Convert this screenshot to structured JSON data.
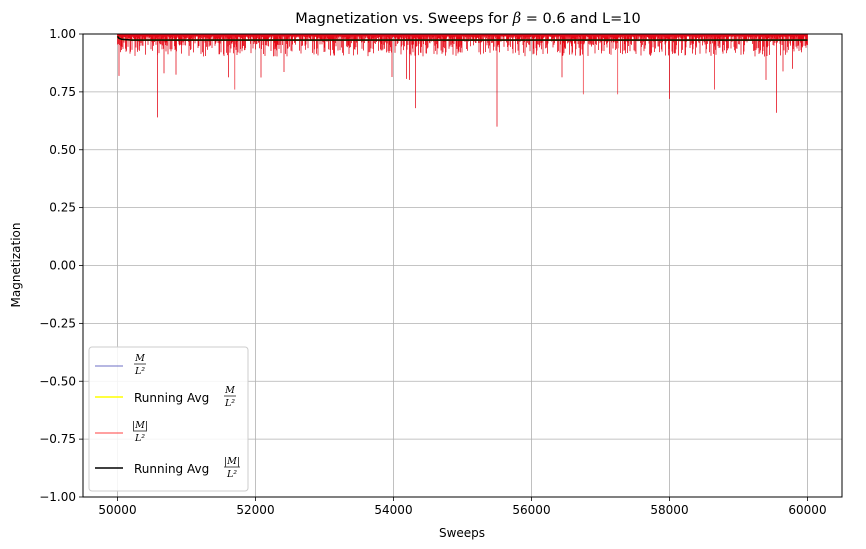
{
  "chart_data": {
    "type": "line",
    "title": "Magnetization vs. Sweeps for ",
    "title_beta_symbol": "β",
    "title_beta_eq": " = 0.6 and L=10",
    "xlabel": "Sweeps",
    "ylabel": "Magnetization",
    "xlim": [
      49500,
      60500
    ],
    "ylim": [
      -1.0,
      1.0
    ],
    "xticks": [
      50000,
      52000,
      54000,
      56000,
      58000,
      60000
    ],
    "xtick_labels": [
      "50000",
      "52000",
      "54000",
      "56000",
      "58000",
      "60000"
    ],
    "yticks": [
      1.0,
      0.75,
      0.5,
      0.25,
      0.0,
      -0.25,
      -0.5,
      -0.75,
      -1.0
    ],
    "ytick_labels": [
      "1.00",
      "0.75",
      "0.50",
      "0.25",
      "0.00",
      "−0.25",
      "−0.50",
      "−0.75",
      "−1.00"
    ],
    "grid": true,
    "legend_position": "lower-left",
    "series": [
      {
        "key": "m",
        "legend_math_num": "M",
        "legend_math_den": "L²",
        "color": "#3b3fb0",
        "style": "thin-line",
        "x_range": [
          50000,
          60000
        ],
        "typical_range": [
          0.9,
          1.0
        ],
        "dips": [
          {
            "x": 50580,
            "y": 0.64
          },
          {
            "x": 51700,
            "y": 0.76
          },
          {
            "x": 54320,
            "y": 0.68
          },
          {
            "x": 55500,
            "y": 0.6
          },
          {
            "x": 56750,
            "y": 0.74
          },
          {
            "x": 57250,
            "y": 0.74
          },
          {
            "x": 58000,
            "y": 0.72
          },
          {
            "x": 58650,
            "y": 0.76
          },
          {
            "x": 59550,
            "y": 0.66
          }
        ]
      },
      {
        "key": "m_avg",
        "legend_prefix": "Running Avg ",
        "legend_math_num": "M",
        "legend_math_den": "L²",
        "color": "#ffff00",
        "style": "line",
        "x": [
          50000,
          50020,
          50060,
          50200,
          60000
        ],
        "y": [
          0.99,
          0.982,
          0.977,
          0.974,
          0.974
        ]
      },
      {
        "key": "abs_m",
        "legend_math_num": "|M|",
        "legend_math_den": "L²",
        "color": "#ff0000",
        "style": "thin-line",
        "same_as": "m"
      },
      {
        "key": "abs_m_avg",
        "legend_prefix": "Running Avg ",
        "legend_math_num": "|M|",
        "legend_math_den": "L²",
        "color": "#000000",
        "style": "line",
        "x": [
          50000,
          50020,
          50060,
          50200,
          60000
        ],
        "y": [
          0.99,
          0.982,
          0.977,
          0.974,
          0.974
        ]
      }
    ]
  }
}
